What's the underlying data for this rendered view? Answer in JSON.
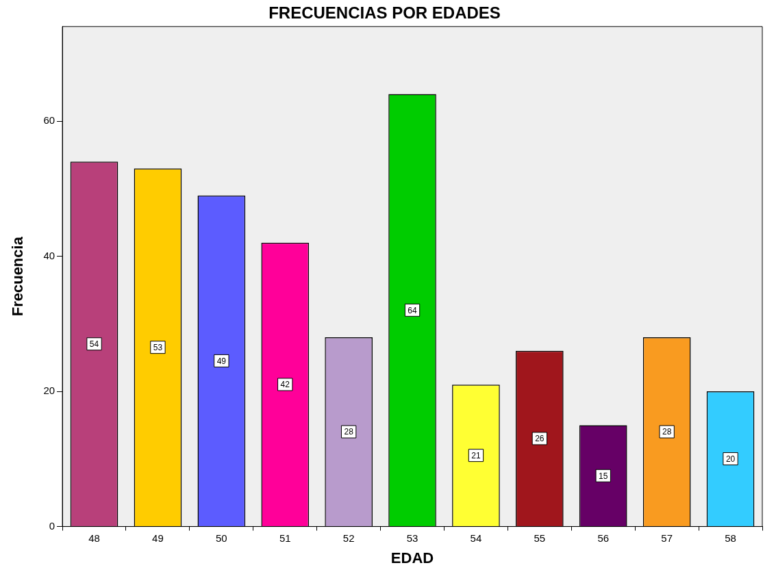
{
  "chart_data": {
    "type": "bar",
    "title": "FRECUENCIAS POR EDADES",
    "xlabel": "EDAD",
    "ylabel": "Frecuencia",
    "categories": [
      "48",
      "49",
      "50",
      "51",
      "52",
      "53",
      "54",
      "55",
      "56",
      "57",
      "58"
    ],
    "values": [
      54,
      53,
      49,
      42,
      28,
      64,
      21,
      26,
      15,
      28,
      20
    ],
    "colors": [
      "#b8407a",
      "#ffcc00",
      "#5c5cff",
      "#ff0099",
      "#b89bcc",
      "#00cc00",
      "#ffff33",
      "#a0161c",
      "#660066",
      "#f99b20",
      "#33ccff"
    ],
    "ylim": [
      0,
      74
    ],
    "yticks": [
      0,
      20,
      40,
      60
    ],
    "data_labels": true
  }
}
